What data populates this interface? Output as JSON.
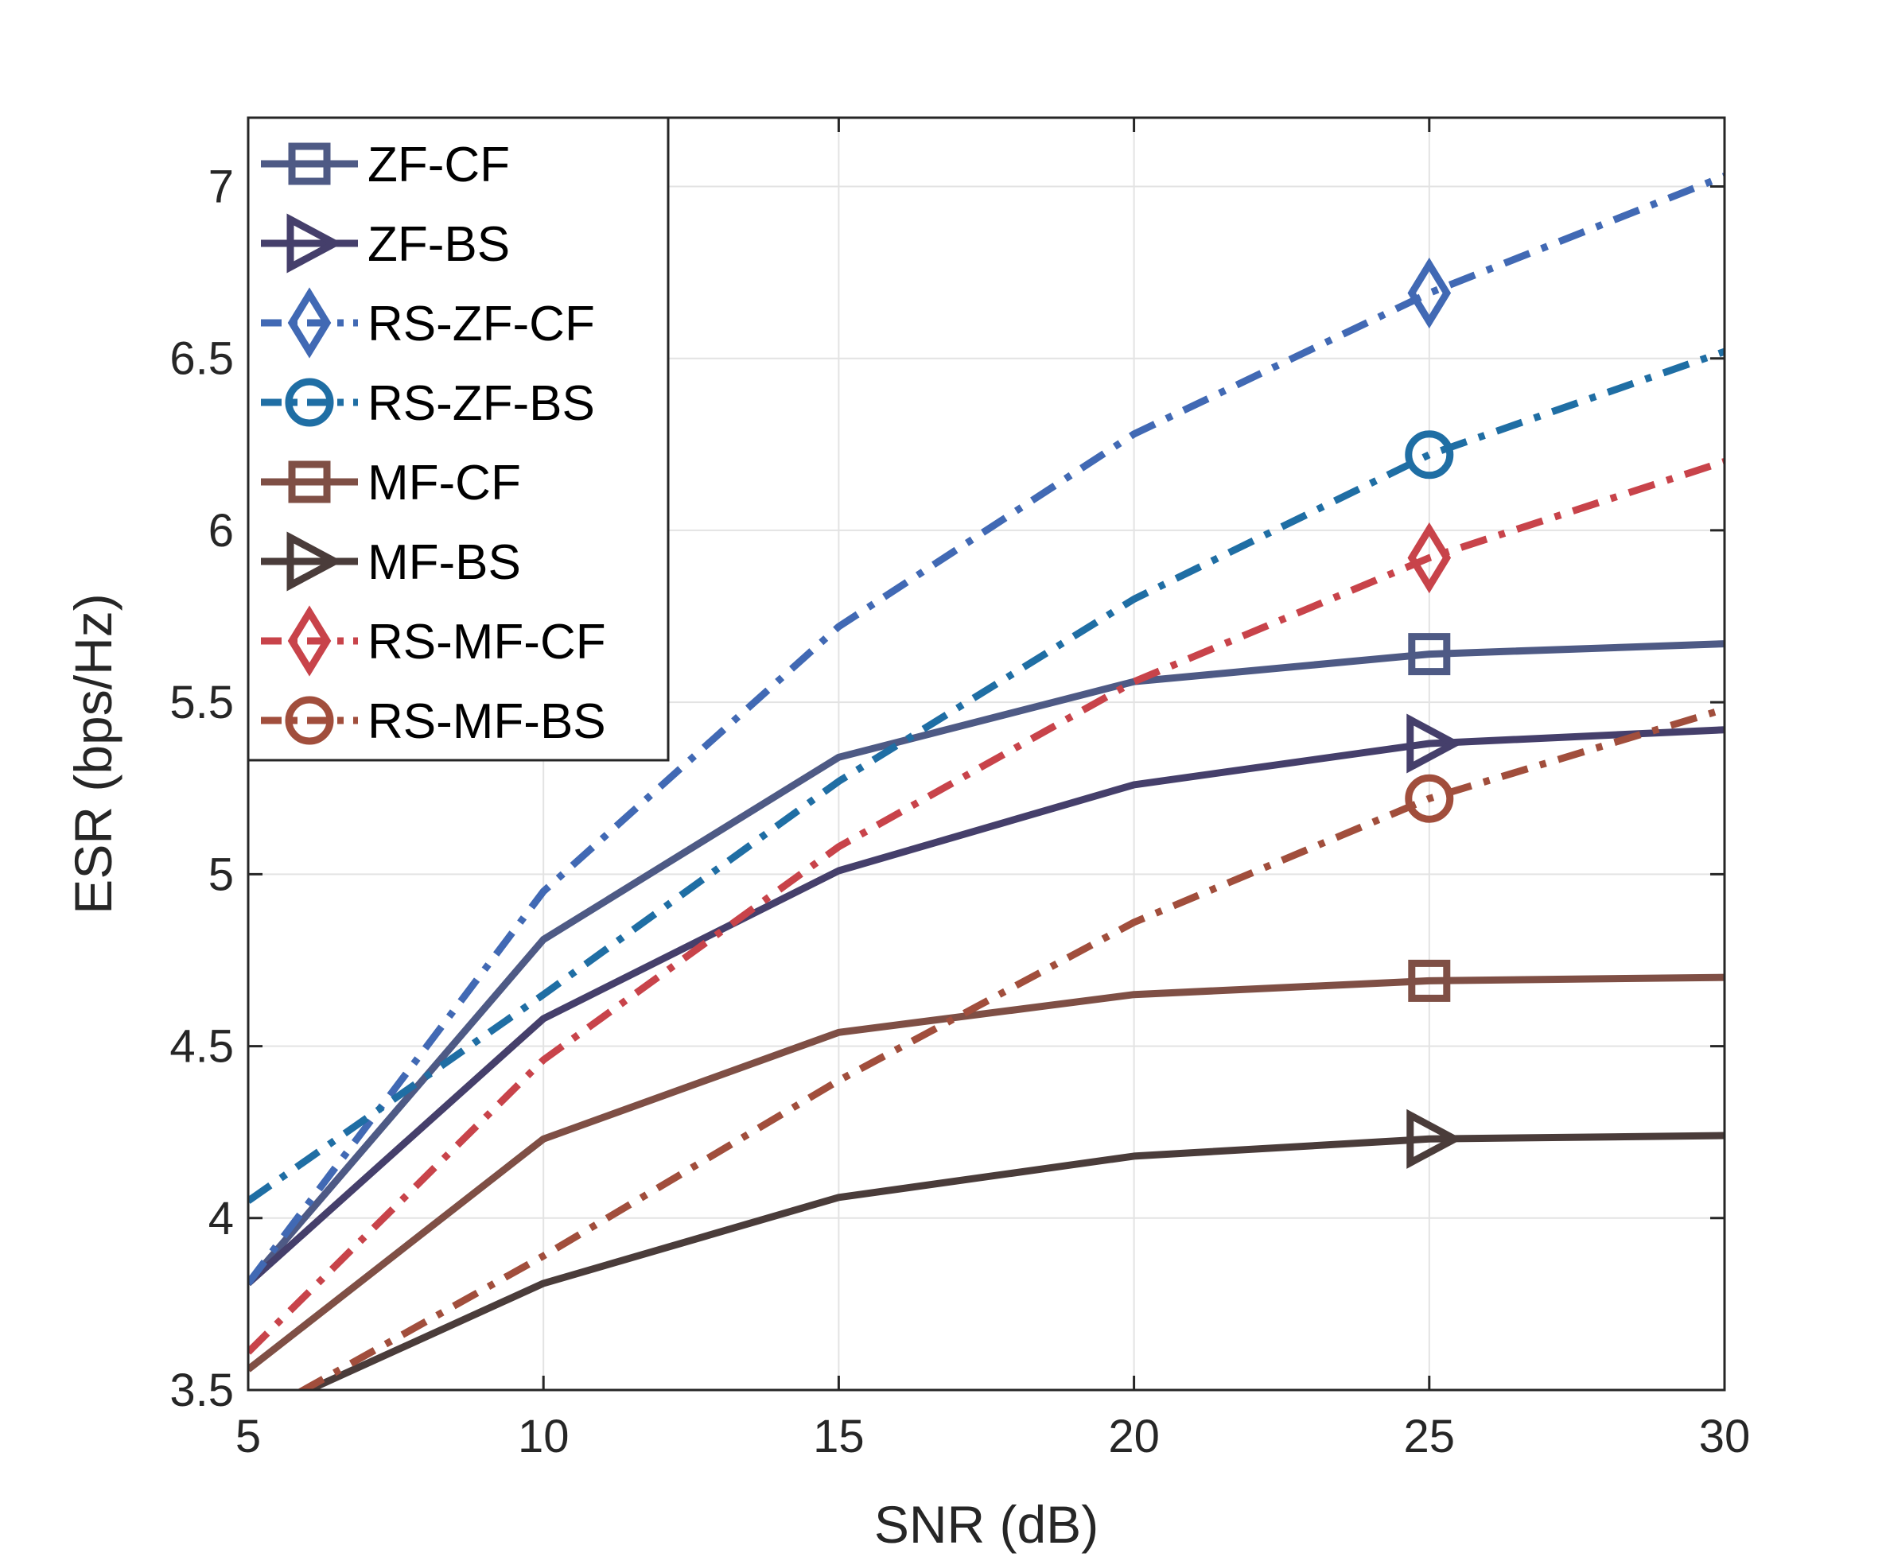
{
  "chart_data": {
    "type": "line",
    "xlabel": "SNR (dB)",
    "ylabel": "ESR (bps/Hz)",
    "xlim": [
      5,
      30
    ],
    "ylim": [
      3.5,
      7.2
    ],
    "xticks": [
      5,
      10,
      15,
      20,
      25,
      30
    ],
    "yticks": [
      3.5,
      4,
      4.5,
      5,
      5.5,
      6,
      6.5,
      7
    ],
    "xtick_labels": [
      "5",
      "10",
      "15",
      "20",
      "25",
      "30"
    ],
    "ytick_labels": [
      "3.5",
      "4",
      "4.5",
      "5",
      "5.5",
      "6",
      "6.5",
      "7"
    ],
    "grid": true,
    "legend_position": "top-left",
    "x": [
      5,
      10,
      15,
      20,
      25,
      30
    ],
    "series": [
      {
        "name": "ZF-CF",
        "values": [
          3.81,
          4.81,
          5.34,
          5.56,
          5.64,
          5.67
        ],
        "color": "#4e5a85",
        "style": "solid",
        "marker": "square"
      },
      {
        "name": "ZF-BS",
        "values": [
          3.81,
          4.58,
          5.01,
          5.26,
          5.38,
          5.42
        ],
        "color": "#453f6b",
        "style": "solid",
        "marker": "triangle-right"
      },
      {
        "name": "RS-ZF-CF",
        "values": [
          3.81,
          4.95,
          5.72,
          6.28,
          6.69,
          7.03
        ],
        "color": "#4169b4",
        "style": "dashdot",
        "marker": "diamond"
      },
      {
        "name": "RS-ZF-BS",
        "values": [
          4.05,
          4.65,
          5.27,
          5.8,
          6.22,
          6.52
        ],
        "color": "#1f6ea4",
        "style": "dashdot",
        "marker": "circle"
      },
      {
        "name": "MF-CF",
        "values": [
          3.56,
          4.23,
          4.54,
          4.65,
          4.69,
          4.7
        ],
        "color": "#7f4f45",
        "style": "solid",
        "marker": "square"
      },
      {
        "name": "MF-BS",
        "values": [
          3.42,
          3.81,
          4.06,
          4.18,
          4.23,
          4.24
        ],
        "color": "#4a3c3a",
        "style": "solid",
        "marker": "triangle-right"
      },
      {
        "name": "RS-MF-CF",
        "values": [
          3.61,
          4.46,
          5.08,
          5.56,
          5.92,
          6.2
        ],
        "color": "#c8434a",
        "style": "dashdot",
        "marker": "diamond"
      },
      {
        "name": "RS-MF-BS",
        "values": [
          3.41,
          3.89,
          4.4,
          4.86,
          5.22,
          5.48
        ],
        "color": "#a14e3c",
        "style": "dashdot",
        "marker": "circle"
      }
    ],
    "marker_x": 25
  }
}
